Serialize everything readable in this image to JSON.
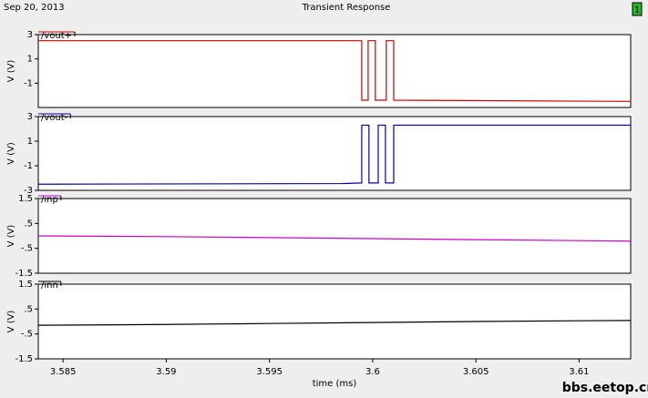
{
  "header": {
    "date": "Sep 20, 2013",
    "title": "Transient Response",
    "badge": "1"
  },
  "watermark": "bbs.eetop.cn",
  "chart_data": [
    {
      "type": "line",
      "ylabel": "V (V)",
      "xlim": [
        3.5838,
        3.6125
      ],
      "ylim": [
        -3,
        3
      ],
      "yticks": [
        3,
        1,
        -1
      ],
      "x": [
        3.5838,
        3.59947,
        3.59947,
        3.59978,
        3.59978,
        3.60013,
        3.60013,
        3.60066,
        3.60066,
        3.60102,
        3.60102,
        3.6125
      ],
      "series": [
        {
          "name": "/vout+",
          "color": "#cc0000",
          "values": [
            2.5,
            2.5,
            -2.4,
            -2.4,
            2.5,
            2.5,
            -2.4,
            -2.4,
            2.5,
            2.5,
            -2.4,
            -2.5
          ]
        }
      ]
    },
    {
      "type": "line",
      "ylabel": "V (V)",
      "xlim": [
        3.5838,
        3.6125
      ],
      "ylim": [
        -3,
        3
      ],
      "yticks": [
        3,
        1,
        -1,
        -3
      ],
      "x": [
        3.5838,
        3.5985,
        3.59947,
        3.59947,
        3.59982,
        3.59982,
        3.60027,
        3.60027,
        3.60062,
        3.60062,
        3.60102,
        3.60102,
        3.6125
      ],
      "series": [
        {
          "name": "/vout-",
          "color": "#0000aa",
          "values": [
            -2.5,
            -2.45,
            -2.4,
            2.3,
            2.3,
            -2.4,
            -2.4,
            2.3,
            2.3,
            -2.4,
            -2.4,
            2.3,
            2.3
          ]
        }
      ]
    },
    {
      "type": "line",
      "ylabel": "V (V)",
      "xlim": [
        3.5838,
        3.6125
      ],
      "ylim": [
        -1.5,
        1.5
      ],
      "yticks": [
        1.5,
        {
          "value": 0.5,
          "label": ".5"
        },
        {
          "value": -0.5,
          "label": "-.5"
        },
        -1.5
      ],
      "x": [
        3.5838,
        3.59,
        3.595,
        3.6,
        3.605,
        3.61,
        3.6125
      ],
      "series": [
        {
          "name": "/inp",
          "color": "#cc00cc",
          "values": [
            0.0,
            -0.03,
            -0.07,
            -0.11,
            -0.15,
            -0.19,
            -0.21
          ]
        }
      ]
    },
    {
      "type": "line",
      "ylabel": "V (V)",
      "xlabel": "time (ms)",
      "xlim": [
        3.5838,
        3.6125
      ],
      "ylim": [
        -1.5,
        1.5
      ],
      "yticks": [
        1.5,
        {
          "value": 0.5,
          "label": ".5"
        },
        {
          "value": -0.5,
          "label": "-.5"
        },
        -1.5
      ],
      "xticks": [
        3.585,
        3.59,
        3.595,
        3.6,
        3.605,
        3.61
      ],
      "x": [
        3.5838,
        3.59,
        3.595,
        3.6,
        3.605,
        3.61,
        3.6125
      ],
      "series": [
        {
          "name": "/inn",
          "color": "#000000",
          "values": [
            -0.15,
            -0.12,
            -0.08,
            -0.04,
            0.0,
            0.03,
            0.04
          ]
        }
      ]
    }
  ]
}
